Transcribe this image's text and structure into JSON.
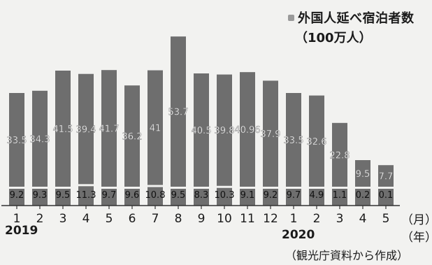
{
  "chart_data": {
    "type": "bar",
    "title": "外国人延べ宿泊者数",
    "unit": "（100万人）",
    "categories": [
      "1",
      "2",
      "3",
      "4",
      "5",
      "6",
      "7",
      "8",
      "9",
      "10",
      "11",
      "12",
      "1",
      "2",
      "3",
      "4",
      "5"
    ],
    "years": [
      {
        "label": "2019",
        "start_index": 0
      },
      {
        "label": "2020",
        "start_index": 12
      }
    ],
    "series": [
      {
        "values": [
          33.5,
          34.3,
          41.5,
          39.4,
          41.7,
          36.2,
          41,
          53.7,
          40.5,
          39.8,
          40.96,
          37.9,
          33.5,
          32.6,
          22.8,
          9.5,
          7.7
        ]
      },
      {
        "values": [
          9.2,
          9.3,
          9.5,
          11.3,
          9.7,
          9.6,
          10.8,
          9.5,
          8.3,
          10.3,
          9.1,
          9.2,
          9.7,
          4.9,
          1.1,
          0.2,
          0.1
        ]
      }
    ],
    "xunit_month": "（月）",
    "xunit_year": "（年）",
    "source": "（観光庁資料から作成）",
    "colors": {
      "bar": "#6e6e6e",
      "background": "#f2f2f0",
      "label": "#ffffff",
      "text": "#1a1a1a",
      "swatch": "#9a9a9a"
    }
  }
}
